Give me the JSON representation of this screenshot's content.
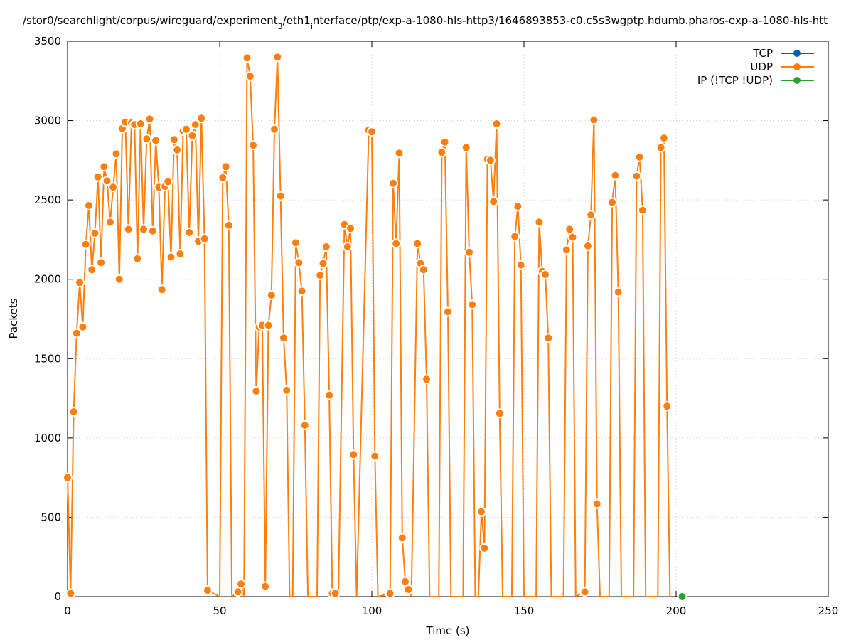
{
  "chart_data": {
    "type": "line",
    "title": "/stor0/searchlight/corpus/wireguard/experiment",
    "title_sub": "3",
    "title_mid": "/eth1",
    "title_sub2": "i",
    "title_tail": "nterface/ptp/exp-a-1080-hls-http3/1646893853-c0.c5s3wgptp.hdumb.pharos-exp-a-1080-hls-htt",
    "xlabel": "Time (s)",
    "ylabel": "Packets",
    "xlim": [
      0,
      250
    ],
    "ylim": [
      0,
      3500
    ],
    "x_ticks": [
      0,
      50,
      100,
      150,
      200,
      250
    ],
    "y_ticks": [
      0,
      500,
      1000,
      1500,
      2000,
      2500,
      3000,
      3500
    ],
    "grid": true,
    "legend_position": "top-right",
    "series": [
      {
        "name": "TCP",
        "color": "#0060ad",
        "points": []
      },
      {
        "name": "UDP",
        "color": "#ff7f0e",
        "points": [
          [
            0,
            750
          ],
          [
            1,
            20
          ],
          [
            2,
            1165
          ],
          [
            3,
            1660
          ],
          [
            4,
            1980
          ],
          [
            5,
            1700
          ],
          [
            6,
            2220
          ],
          [
            7,
            2465
          ],
          [
            8,
            2060
          ],
          [
            9,
            2290
          ],
          [
            10,
            2645
          ],
          [
            11,
            2105
          ],
          [
            12,
            2710
          ],
          [
            13,
            2620
          ],
          [
            14,
            2360
          ],
          [
            15,
            2580
          ],
          [
            16,
            2790
          ],
          [
            17,
            2000
          ],
          [
            18,
            2950
          ],
          [
            19,
            2990
          ],
          [
            20,
            2315
          ],
          [
            21,
            2985
          ],
          [
            22,
            2975
          ],
          [
            23,
            2130
          ],
          [
            24,
            2980
          ],
          [
            25,
            2315
          ],
          [
            26,
            2885
          ],
          [
            27,
            3010
          ],
          [
            28,
            2305
          ],
          [
            29,
            2875
          ],
          [
            30,
            2580
          ],
          [
            31,
            1935
          ],
          [
            32,
            2585
          ],
          [
            33,
            2615
          ],
          [
            34,
            2140
          ],
          [
            35,
            2880
          ],
          [
            36,
            2815
          ],
          [
            37,
            2160
          ],
          [
            38,
            2935
          ],
          [
            39,
            2945
          ],
          [
            40,
            2295
          ],
          [
            41,
            2905
          ],
          [
            42,
            2975
          ],
          [
            43,
            2240
          ],
          [
            44,
            3015
          ],
          [
            45,
            2255
          ],
          [
            46,
            40
          ],
          [
            50,
            0
          ],
          [
            51,
            2640
          ],
          [
            52,
            2710
          ],
          [
            53,
            2340
          ],
          [
            54,
            0
          ],
          [
            56,
            30
          ],
          [
            57,
            80
          ],
          [
            58,
            0
          ],
          [
            59,
            3395
          ],
          [
            60,
            3280
          ],
          [
            61,
            2845
          ],
          [
            62,
            1295
          ],
          [
            63,
            1700
          ],
          [
            64,
            1710
          ],
          [
            65,
            65
          ],
          [
            66,
            1710
          ],
          [
            67,
            1900
          ],
          [
            68,
            2945
          ],
          [
            69,
            3400
          ],
          [
            70,
            2525
          ],
          [
            71,
            1630
          ],
          [
            72,
            1300
          ],
          [
            73,
            0
          ],
          [
            74,
            0
          ],
          [
            75,
            2230
          ],
          [
            76,
            2105
          ],
          [
            77,
            1925
          ],
          [
            78,
            1080
          ],
          [
            79,
            0
          ],
          [
            82,
            0
          ],
          [
            83,
            2025
          ],
          [
            84,
            2100
          ],
          [
            85,
            2205
          ],
          [
            86,
            1270
          ],
          [
            87,
            20
          ],
          [
            88,
            20
          ],
          [
            89,
            0
          ],
          [
            91,
            2345
          ],
          [
            92,
            2205
          ],
          [
            93,
            2320
          ],
          [
            94,
            895
          ],
          [
            95,
            0
          ],
          [
            99,
            2940
          ],
          [
            100,
            2930
          ],
          [
            101,
            885
          ],
          [
            102,
            0
          ],
          [
            106,
            20
          ],
          [
            107,
            2605
          ],
          [
            108,
            2225
          ],
          [
            109,
            2795
          ],
          [
            110,
            370
          ],
          [
            111,
            95
          ],
          [
            112,
            45
          ],
          [
            113,
            0
          ],
          [
            115,
            2225
          ],
          [
            116,
            2100
          ],
          [
            117,
            2060
          ],
          [
            118,
            1370
          ],
          [
            119,
            0
          ],
          [
            122,
            0
          ],
          [
            123,
            2800
          ],
          [
            124,
            2865
          ],
          [
            125,
            1795
          ],
          [
            126,
            0
          ],
          [
            130,
            0
          ],
          [
            131,
            2830
          ],
          [
            132,
            2170
          ],
          [
            133,
            1840
          ],
          [
            134,
            0
          ],
          [
            135,
            0
          ],
          [
            136,
            535
          ],
          [
            137,
            305
          ],
          [
            138,
            2755
          ],
          [
            139,
            2750
          ],
          [
            140,
            2490
          ],
          [
            141,
            2980
          ],
          [
            142,
            1155
          ],
          [
            143,
            0
          ],
          [
            146,
            0
          ],
          [
            147,
            2270
          ],
          [
            148,
            2460
          ],
          [
            149,
            2090
          ],
          [
            150,
            0
          ],
          [
            154,
            0
          ],
          [
            155,
            2360
          ],
          [
            156,
            2050
          ],
          [
            157,
            2030
          ],
          [
            158,
            1630
          ],
          [
            159,
            0
          ],
          [
            163,
            0
          ],
          [
            164,
            2185
          ],
          [
            165,
            2315
          ],
          [
            166,
            2265
          ],
          [
            167,
            0
          ],
          [
            170,
            30
          ],
          [
            171,
            2210
          ],
          [
            172,
            2405
          ],
          [
            173,
            3005
          ],
          [
            174,
            585
          ],
          [
            175,
            0
          ],
          [
            178,
            0
          ],
          [
            179,
            2485
          ],
          [
            180,
            2655
          ],
          [
            181,
            1920
          ],
          [
            182,
            0
          ],
          [
            186,
            0
          ],
          [
            187,
            2650
          ],
          [
            188,
            2770
          ],
          [
            189,
            2435
          ],
          [
            190,
            0
          ],
          [
            194,
            0
          ],
          [
            195,
            2830
          ],
          [
            196,
            2890
          ],
          [
            197,
            1200
          ],
          [
            198,
            0
          ]
        ]
      },
      {
        "name": "IP (!TCP  !UDP)",
        "color": "#2ca02c",
        "points": [
          [
            202,
            0
          ]
        ]
      }
    ]
  }
}
